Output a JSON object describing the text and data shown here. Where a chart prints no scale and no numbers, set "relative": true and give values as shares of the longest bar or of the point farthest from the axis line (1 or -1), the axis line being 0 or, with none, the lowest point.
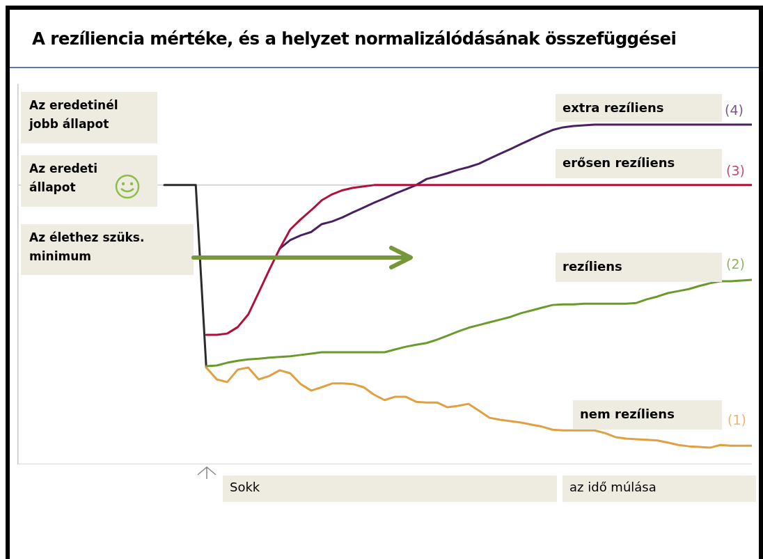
{
  "chart_data": {
    "type": "line",
    "relative": true,
    "title": "A rezíliencia mértéke, és a helyzet normalizálódásának összefüggései",
    "xlabel": "az idő múlása",
    "annotations": [
      "Az eredetinél jobb állapot",
      "Az eredeti állapot",
      "Az élethez szüks. minimum",
      "(4)",
      "(3)",
      "(2)",
      "(1)",
      "Sokk"
    ],
    "ref_lines": [
      {
        "axis": "y",
        "value": 0.822,
        "color": "#d6d6d6"
      }
    ],
    "categories": [
      null,
      null,
      null,
      null,
      null,
      null,
      null,
      null,
      null,
      null,
      null,
      null,
      null,
      null,
      null,
      null,
      null,
      null,
      null,
      null,
      null,
      null,
      null,
      null,
      null,
      null,
      null,
      null,
      null,
      null,
      null,
      null,
      null,
      null,
      null,
      null,
      null,
      null,
      null,
      null,
      null,
      null,
      null,
      null,
      null,
      null,
      null,
      null,
      null,
      null,
      null,
      null,
      null,
      null,
      null,
      null,
      null,
      null,
      null,
      null,
      null,
      null,
      null,
      null,
      null,
      null,
      null,
      null,
      null,
      null,
      null
    ],
    "series": [
      {
        "color": "#2b2b2b",
        "values": [
          null,
          null,
          null,
          null,
          null,
          null,
          null,
          null,
          null,
          null,
          null,
          null,
          null,
          null,
          0.822,
          0.822,
          0.822,
          0.822,
          0.285,
          null,
          null,
          null,
          null,
          null,
          null,
          null,
          null,
          null,
          null,
          null,
          null,
          null,
          null,
          null,
          null,
          null,
          null,
          null,
          null,
          null,
          null,
          null,
          null,
          null,
          null,
          null,
          null,
          null,
          null,
          null,
          null,
          null,
          null,
          null,
          null,
          null,
          null,
          null,
          null,
          null,
          null,
          null,
          null,
          null,
          null,
          null,
          null,
          null,
          null,
          null,
          null
        ]
      },
      {
        "name": "extra rezíliens",
        "color": "#4b2060",
        "values": [
          null,
          null,
          null,
          null,
          null,
          null,
          null,
          null,
          null,
          null,
          null,
          null,
          null,
          null,
          null,
          null,
          null,
          null,
          null,
          null,
          null,
          null,
          null,
          null,
          null,
          0.635,
          0.66,
          0.674,
          0.684,
          0.707,
          0.715,
          0.727,
          0.742,
          0.756,
          0.77,
          0.783,
          0.797,
          0.809,
          0.822,
          0.84,
          0.848,
          0.857,
          0.867,
          0.875,
          0.885,
          0.9,
          0.914,
          0.928,
          0.943,
          0.957,
          0.971,
          0.984,
          0.992,
          0.996,
          0.998,
          1,
          1,
          1,
          1,
          1,
          1,
          1,
          1,
          1,
          1,
          1,
          1,
          1,
          1,
          1,
          1
        ]
      },
      {
        "name": "erősen rezíliens",
        "color": "#b0103a",
        "values": [
          null,
          null,
          null,
          null,
          null,
          null,
          null,
          null,
          null,
          null,
          null,
          null,
          null,
          null,
          null,
          null,
          null,
          null,
          0.381,
          0.381,
          0.385,
          0.404,
          0.441,
          0.506,
          0.572,
          0.635,
          0.691,
          0.721,
          0.748,
          0.777,
          0.795,
          0.807,
          0.814,
          0.818,
          0.822,
          0.822,
          0.822,
          0.822,
          0.822,
          0.822,
          0.822,
          0.822,
          0.822,
          0.822,
          0.822,
          0.822,
          0.822,
          0.822,
          0.822,
          0.822,
          0.822,
          0.822,
          0.822,
          0.822,
          0.822,
          0.822,
          0.822,
          0.822,
          0.822,
          0.822,
          0.822,
          0.822,
          0.822,
          0.822,
          0.822,
          0.822,
          0.822,
          0.822,
          0.822,
          0.822,
          0.822
        ]
      },
      {
        "name": "rezíliens",
        "color": "#6a9a2a",
        "values": [
          null,
          null,
          null,
          null,
          null,
          null,
          null,
          null,
          null,
          null,
          null,
          null,
          null,
          null,
          null,
          null,
          null,
          null,
          0.289,
          0.291,
          0.299,
          0.305,
          0.309,
          0.311,
          0.314,
          0.316,
          0.318,
          0.322,
          0.326,
          0.33,
          0.33,
          0.33,
          0.33,
          0.33,
          0.33,
          0.33,
          0.338,
          0.346,
          0.352,
          0.357,
          0.367,
          0.379,
          0.391,
          0.402,
          0.41,
          0.418,
          0.426,
          0.434,
          0.445,
          0.453,
          0.461,
          0.469,
          0.471,
          0.471,
          0.473,
          0.473,
          0.473,
          0.473,
          0.473,
          0.475,
          0.486,
          0.494,
          0.504,
          0.51,
          0.516,
          0.525,
          0.533,
          0.539,
          0.539,
          0.541,
          0.543
        ]
      },
      {
        "name": "nem rezíliens",
        "color": "#e0a040",
        "values": [
          null,
          null,
          null,
          null,
          null,
          null,
          null,
          null,
          null,
          null,
          null,
          null,
          null,
          null,
          null,
          null,
          null,
          null,
          0.285,
          0.25,
          0.242,
          0.279,
          0.285,
          0.25,
          0.26,
          0.277,
          0.268,
          0.236,
          0.217,
          0.227,
          0.238,
          0.238,
          0.236,
          0.227,
          0.205,
          0.189,
          0.199,
          0.199,
          0.184,
          0.182,
          0.182,
          0.168,
          0.172,
          0.178,
          0.158,
          0.137,
          0.131,
          0.127,
          0.123,
          0.117,
          0.111,
          0.102,
          0.1,
          0.1,
          0.1,
          0.1,
          0.092,
          0.08,
          0.076,
          0.074,
          0.072,
          0.07,
          0.064,
          0.057,
          0.053,
          0.051,
          0.049,
          0.057,
          0.055,
          0.055,
          0.055
        ]
      }
    ]
  }
}
